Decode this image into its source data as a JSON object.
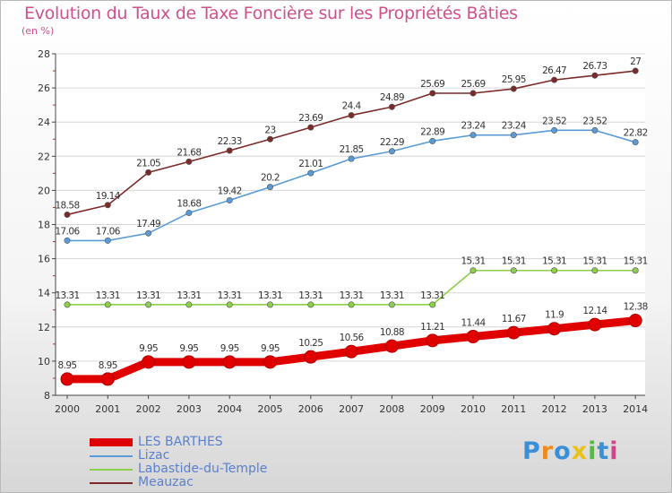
{
  "header": {
    "title": "Evolution du Taux de Taxe Foncière sur les Propriétés Bâties",
    "unit": "(en %)"
  },
  "logo": {
    "text": "Proxiti"
  },
  "chart_data": {
    "type": "line",
    "title": "Evolution du Taux de Taxe Foncière sur les Propriétés Bâties",
    "ylabel": "(en %)",
    "xlabel": "",
    "x": [
      "2000",
      "2001",
      "2002",
      "2003",
      "2004",
      "2005",
      "2006",
      "2007",
      "2008",
      "2009",
      "2010",
      "2011",
      "2012",
      "2013",
      "2014"
    ],
    "ylim": [
      8,
      28
    ],
    "yticks": [
      "8",
      "10",
      "12",
      "14",
      "16",
      "18",
      "20",
      "22",
      "24",
      "26",
      "28"
    ],
    "grid": "horizontal",
    "legend_position": "bottom-left",
    "series": [
      {
        "name": "LES BARTHES",
        "color": "#e00000",
        "weight": "heavy",
        "values": [
          8.95,
          8.95,
          9.95,
          9.95,
          9.95,
          9.95,
          10.25,
          10.56,
          10.88,
          11.21,
          11.44,
          11.67,
          11.9,
          12.14,
          12.38
        ],
        "labels": [
          "8.95",
          "8.95",
          "9.95",
          "9.95",
          "9.95",
          "9.95",
          "10.25",
          "10.56",
          "10.88",
          "11.21",
          "11.44",
          "11.67",
          "11.9",
          "12.14",
          "12.38"
        ]
      },
      {
        "name": "Lizac",
        "color": "#5b9bd5",
        "weight": "normal",
        "values": [
          17.06,
          17.06,
          17.49,
          18.68,
          19.42,
          20.2,
          21.01,
          21.85,
          22.29,
          22.89,
          23.24,
          23.24,
          23.52,
          23.52,
          22.82
        ],
        "labels": [
          "17.06",
          "17.06",
          "17.49",
          "18.68",
          "19.42",
          "20.2",
          "21.01",
          "21.85",
          "22.29",
          "22.89",
          "23.24",
          "23.24",
          "23.52",
          "23.52",
          "22.82"
        ]
      },
      {
        "name": "Labastide-du-Temple",
        "color": "#8ccf4a",
        "weight": "normal",
        "values": [
          13.31,
          13.31,
          13.31,
          13.31,
          13.31,
          13.31,
          13.31,
          13.31,
          13.31,
          13.31,
          15.31,
          15.31,
          15.31,
          15.31,
          15.31
        ],
        "labels": [
          "13.31",
          "13.31",
          "13.31",
          "13.31",
          "13.31",
          "13.31",
          "13.31",
          "13.31",
          "13.31",
          "13.31",
          "15.31",
          "15.31",
          "15.31",
          "15.31",
          "15.31"
        ]
      },
      {
        "name": "Meauzac",
        "color": "#7b2a2a",
        "weight": "normal",
        "values": [
          18.58,
          19.14,
          21.05,
          21.68,
          22.33,
          23,
          23.69,
          24.4,
          24.89,
          25.69,
          25.69,
          25.95,
          26.47,
          26.73,
          27
        ],
        "labels": [
          "18.58",
          "19.14",
          "21.05",
          "21.68",
          "22.33",
          "23",
          "23.69",
          "24.4",
          "24.89",
          "25.69",
          "25.69",
          "25.95",
          "26.47",
          "26.73",
          "27"
        ]
      }
    ]
  }
}
